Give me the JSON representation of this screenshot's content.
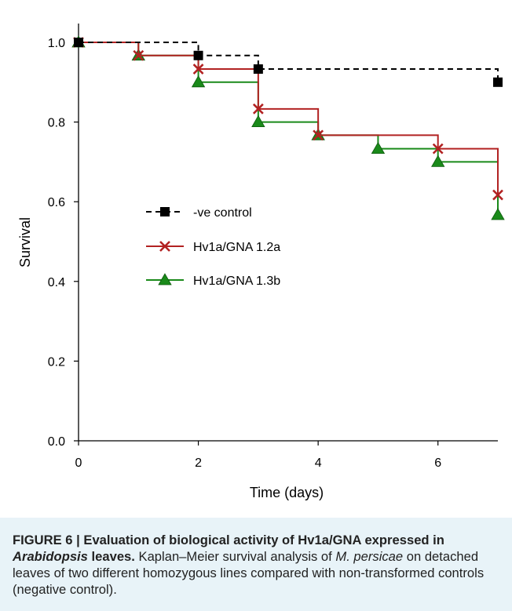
{
  "chart_data": {
    "type": "line",
    "step": true,
    "xlabel": "Time (days)",
    "ylabel": "Survival",
    "xlim": [
      0,
      7
    ],
    "ylim": [
      0,
      1.0
    ],
    "xticks": [
      "0",
      "2",
      "4",
      "6"
    ],
    "yticks": [
      "0.0",
      "0.2",
      "0.4",
      "0.6",
      "0.8",
      "1.0"
    ],
    "legend_position": "center-left",
    "grid": false,
    "series": [
      {
        "name": "-ve control",
        "color": "#000000",
        "marker": "square",
        "dashed": true,
        "x": [
          0,
          2,
          3,
          7
        ],
        "y": [
          1.0,
          0.967,
          0.933,
          0.9
        ]
      },
      {
        "name": "Hv1a/GNA 1.2a",
        "color": "#b22222",
        "marker": "x",
        "dashed": false,
        "x": [
          0,
          1,
          2,
          3,
          4,
          6,
          7
        ],
        "y": [
          1.0,
          0.967,
          0.933,
          0.833,
          0.767,
          0.733,
          0.617
        ]
      },
      {
        "name": "Hv1a/GNA 1.3b",
        "color": "#1a8a1a",
        "marker": "triangle",
        "dashed": false,
        "x": [
          0,
          1,
          2,
          3,
          4,
          5,
          6,
          7
        ],
        "y": [
          1.0,
          0.967,
          0.9,
          0.8,
          0.767,
          0.733,
          0.7,
          0.567
        ]
      }
    ]
  },
  "caption": {
    "label": "FIGURE 6 | Evaluation of biological activity of Hv1a/GNA expressed in ",
    "label_italic": "Arabidopsis",
    "label_end": " leaves.",
    "text_1": " Kaplan–Meier survival analysis of ",
    "text_italic": "M. persicae",
    "text_2": " on detached leaves of two different homozygous lines compared with non-transformed controls (negative control)."
  }
}
